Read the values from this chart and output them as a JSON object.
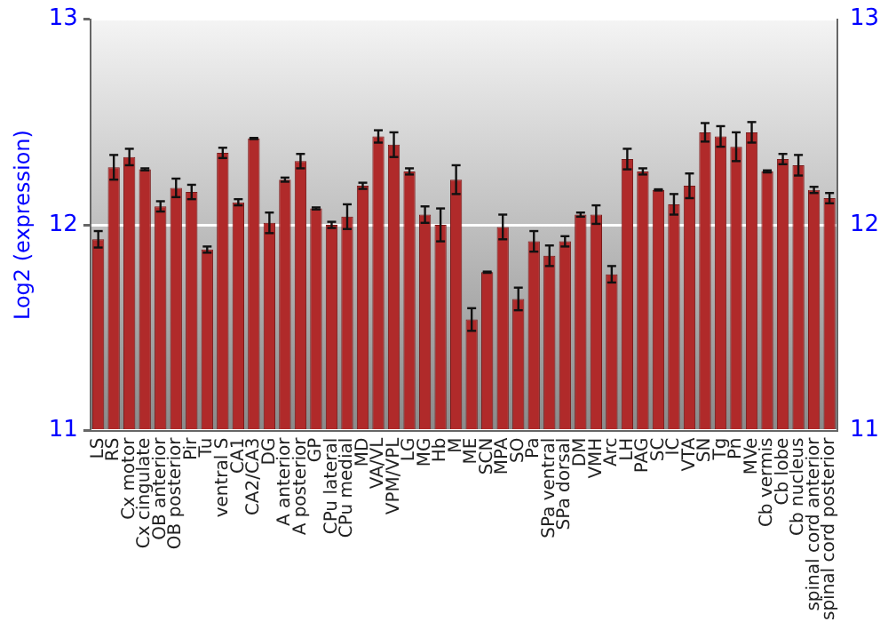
{
  "chart_data": {
    "type": "bar",
    "ylabel": "Log2 (expression)",
    "categories": [
      "LS",
      "RS",
      "Cx motor",
      "Cx cingulate",
      "OB anterior",
      "OB posterior",
      "Pir",
      "Tu",
      "ventral S",
      "CA1",
      "CA2/CA3",
      "DG",
      "A anterior",
      "A posterior",
      "GP",
      "CPu lateral",
      "CPu medial",
      "MD",
      "VA/VL",
      "VPM/VPL",
      "LG",
      "MG",
      "Hb",
      "M",
      "ME",
      "SCN",
      "MPA",
      "SO",
      "Pa",
      "SPa ventral",
      "SPa dorsal",
      "DM",
      "VMH",
      "Arc",
      "LH",
      "PAG",
      "SC",
      "IC",
      "VTA",
      "SN",
      "Tg",
      "Pn",
      "MVe",
      "Cb vermis",
      "Cb lobe",
      "Cb nucleus",
      "spinal cord anterior",
      "spinal cord posterior"
    ],
    "values": [
      11.93,
      12.28,
      12.33,
      12.27,
      12.09,
      12.18,
      12.16,
      11.88,
      12.35,
      12.11,
      12.42,
      12.01,
      12.22,
      12.31,
      12.08,
      12.0,
      12.04,
      12.19,
      12.43,
      12.39,
      12.26,
      12.05,
      12.0,
      12.22,
      11.54,
      11.77,
      11.99,
      11.64,
      11.92,
      11.85,
      11.92,
      12.05,
      12.05,
      11.76,
      12.32,
      12.26,
      12.17,
      12.1,
      12.19,
      12.45,
      12.43,
      12.38,
      12.45,
      12.26,
      12.32,
      12.29,
      12.17,
      12.13
    ],
    "errors": [
      0.04,
      0.06,
      0.04,
      0.005,
      0.025,
      0.045,
      0.035,
      0.015,
      0.025,
      0.015,
      0.003,
      0.05,
      0.01,
      0.035,
      0.005,
      0.015,
      0.06,
      0.015,
      0.03,
      0.06,
      0.015,
      0.04,
      0.08,
      0.07,
      0.055,
      0.003,
      0.06,
      0.055,
      0.05,
      0.05,
      0.025,
      0.01,
      0.045,
      0.04,
      0.05,
      0.015,
      0.003,
      0.05,
      0.06,
      0.045,
      0.05,
      0.07,
      0.05,
      0.005,
      0.025,
      0.05,
      0.015,
      0.025
    ],
    "color": "#b02a2a",
    "ylim": [
      11,
      13
    ],
    "yticks": [
      11,
      12,
      13
    ],
    "y2lim": [
      11,
      13
    ],
    "y2ticks": [
      11,
      12,
      13
    ],
    "grid": "y",
    "legend": false
  }
}
